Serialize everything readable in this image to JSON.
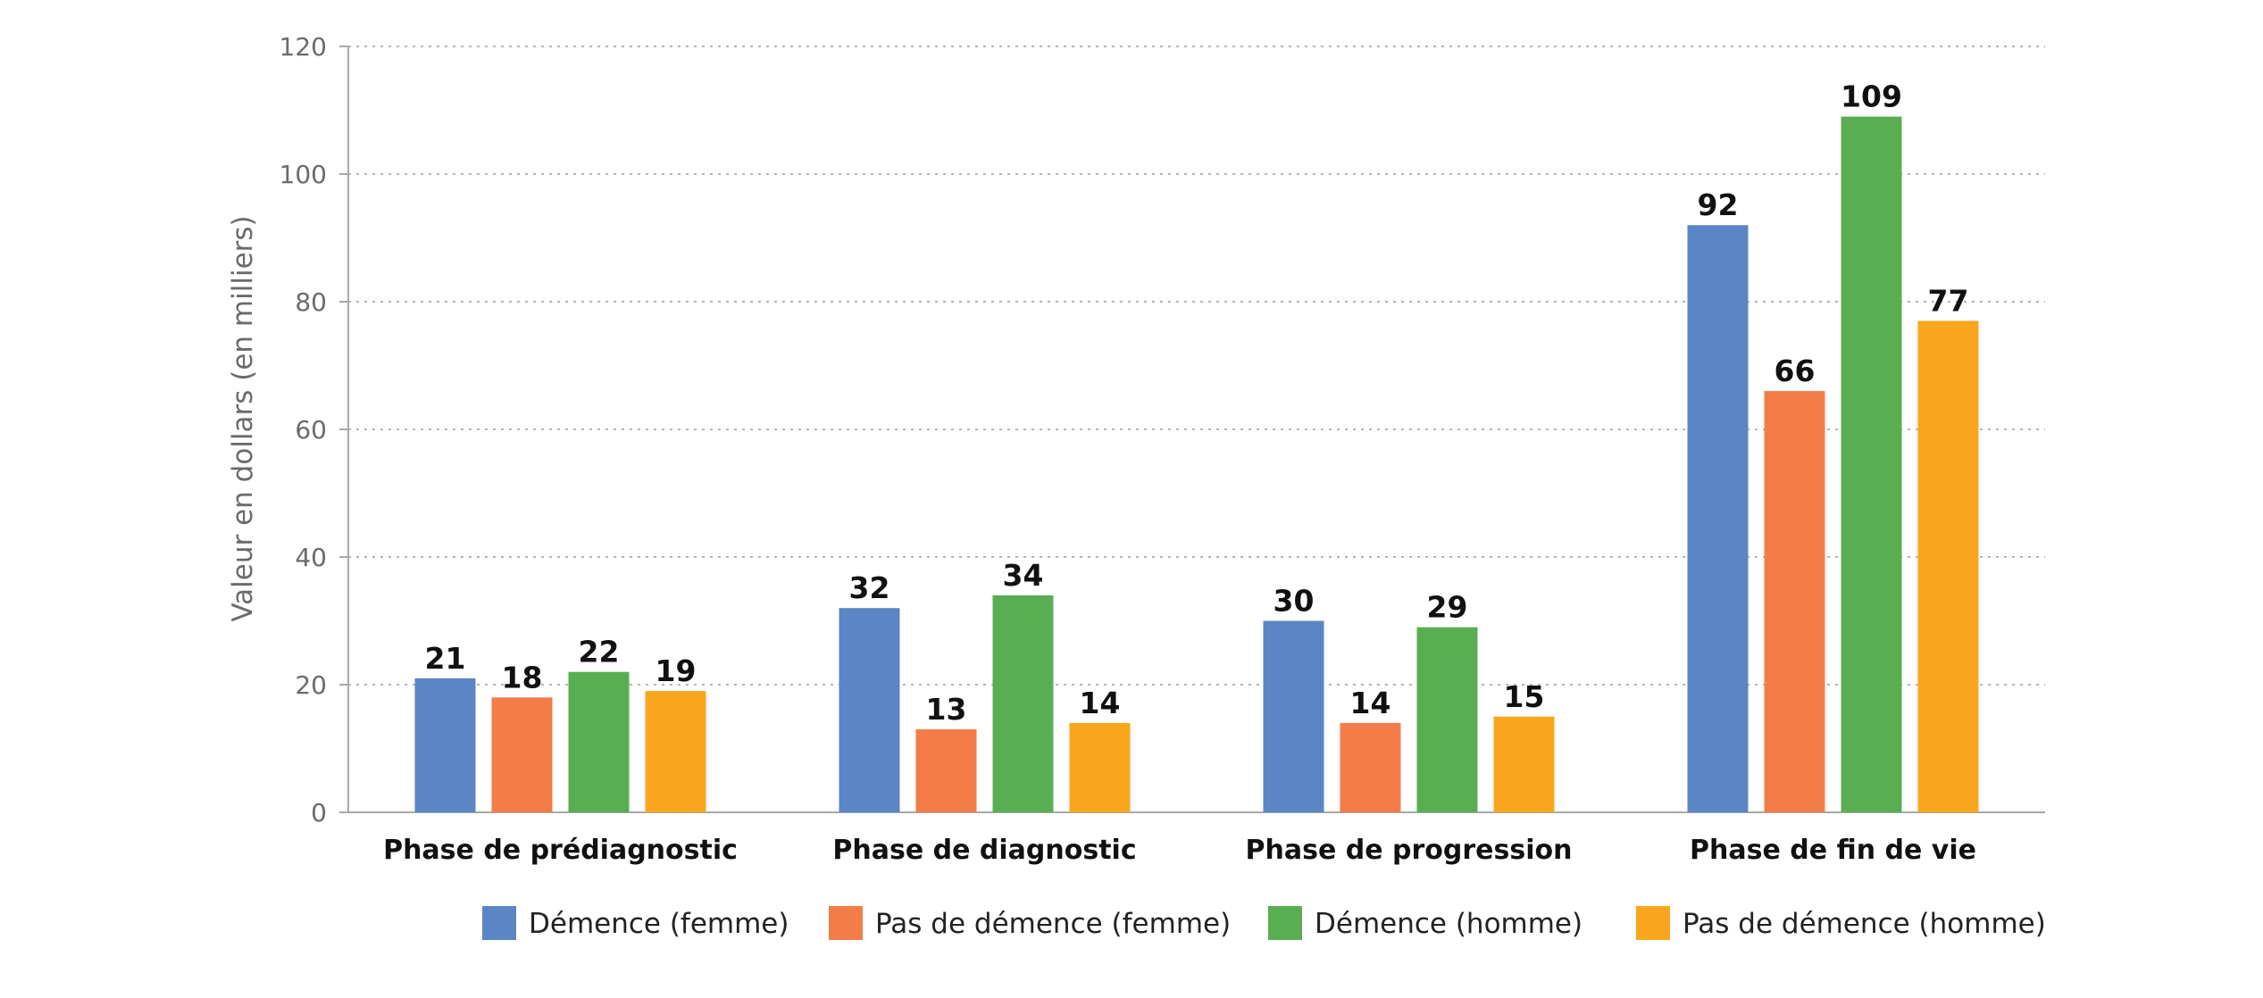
{
  "chart_data": {
    "type": "bar",
    "title": "",
    "xlabel": "",
    "ylabel": "Valeur en dollars (en milliers)",
    "ylim": [
      0,
      120
    ],
    "yticks": [
      0,
      20,
      40,
      60,
      80,
      100,
      120
    ],
    "grid": true,
    "legend_position": "bottom",
    "categories": [
      "Phase de prédiagnostic",
      "Phase de diagnostic",
      "Phase de progression",
      "Phase de fin de vie"
    ],
    "series": [
      {
        "name": "Démence (femme)",
        "color": "#5B86C5",
        "values": [
          21,
          32,
          30,
          92
        ]
      },
      {
        "name": "Pas de démence (femme)",
        "color": "#F47C48",
        "values": [
          18,
          13,
          14,
          66
        ]
      },
      {
        "name": "Démence (homme)",
        "color": "#5AAE52",
        "values": [
          22,
          34,
          29,
          109
        ]
      },
      {
        "name": "Pas de démence (homme)",
        "color": "#F9A61E",
        "values": [
          19,
          14,
          15,
          77
        ]
      }
    ]
  }
}
